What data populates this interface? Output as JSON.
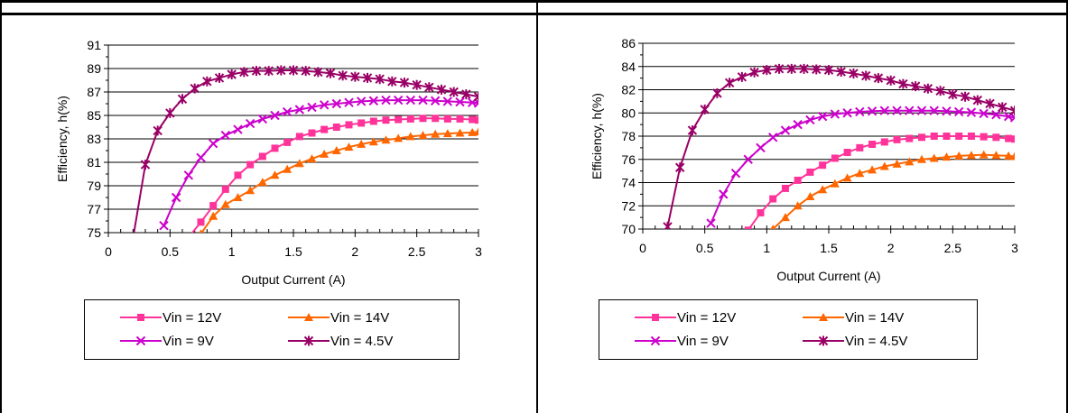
{
  "chart_data": [
    {
      "type": "line",
      "title": "",
      "xlabel": "Output Current (A)",
      "ylabel": "Efficiency, h(%)",
      "xlim": [
        0,
        3
      ],
      "ylim": [
        75,
        91
      ],
      "x_ticks": [
        "0",
        "0.5",
        "1",
        "1.5",
        "2",
        "2.5",
        "3"
      ],
      "y_ticks": [
        "75",
        "77",
        "79",
        "81",
        "83",
        "85",
        "87",
        "89",
        "91"
      ],
      "grid": true,
      "legend_position": "bottom",
      "series": [
        {
          "name": "Vin = 12V",
          "color": "#ff3399",
          "marker": "square",
          "x": [
            0.65,
            0.75,
            0.85,
            0.95,
            1.05,
            1.15,
            1.25,
            1.35,
            1.45,
            1.55,
            1.65,
            1.75,
            1.85,
            1.95,
            2.05,
            2.15,
            2.25,
            2.35,
            2.45,
            2.55,
            2.65,
            2.75,
            2.85,
            2.95,
            3.0
          ],
          "y": [
            74.6,
            75.9,
            77.3,
            78.7,
            79.9,
            80.8,
            81.5,
            82.2,
            82.7,
            83.2,
            83.5,
            83.8,
            84.0,
            84.2,
            84.35,
            84.5,
            84.6,
            84.65,
            84.7,
            84.75,
            84.75,
            84.7,
            84.7,
            84.65,
            84.6
          ]
        },
        {
          "name": "Vin = 14V",
          "color": "#ff6600",
          "marker": "triangle",
          "x": [
            0.75,
            0.85,
            0.95,
            1.05,
            1.15,
            1.25,
            1.35,
            1.45,
            1.55,
            1.65,
            1.75,
            1.85,
            1.95,
            2.05,
            2.15,
            2.25,
            2.35,
            2.45,
            2.55,
            2.65,
            2.75,
            2.85,
            2.95,
            3.0
          ],
          "y": [
            74.9,
            76.4,
            77.4,
            78.0,
            78.6,
            79.3,
            79.9,
            80.4,
            80.9,
            81.3,
            81.7,
            82.0,
            82.3,
            82.55,
            82.75,
            82.9,
            83.05,
            83.2,
            83.3,
            83.4,
            83.45,
            83.5,
            83.55,
            83.6
          ]
        },
        {
          "name": "Vin = 9V",
          "color": "#cc00cc",
          "marker": "x",
          "x": [
            0.45,
            0.55,
            0.65,
            0.75,
            0.85,
            0.95,
            1.05,
            1.15,
            1.25,
            1.35,
            1.45,
            1.55,
            1.65,
            1.75,
            1.85,
            1.95,
            2.05,
            2.15,
            2.25,
            2.35,
            2.45,
            2.55,
            2.65,
            2.75,
            2.85,
            2.95,
            3.0
          ],
          "y": [
            75.6,
            78.0,
            79.9,
            81.4,
            82.6,
            83.3,
            83.8,
            84.3,
            84.7,
            85.0,
            85.3,
            85.5,
            85.7,
            85.9,
            86.0,
            86.1,
            86.2,
            86.25,
            86.3,
            86.3,
            86.3,
            86.3,
            86.25,
            86.2,
            86.15,
            86.1,
            86.05
          ]
        },
        {
          "name": "Vin = 4.5V",
          "color": "#990066",
          "marker": "star",
          "x": [
            0.2,
            0.3,
            0.4,
            0.5,
            0.6,
            0.7,
            0.8,
            0.9,
            1.0,
            1.1,
            1.2,
            1.3,
            1.4,
            1.5,
            1.6,
            1.7,
            1.8,
            1.9,
            2.0,
            2.1,
            2.2,
            2.3,
            2.4,
            2.5,
            2.6,
            2.7,
            2.8,
            2.9,
            3.0
          ],
          "y": [
            74.5,
            80.8,
            83.7,
            85.2,
            86.4,
            87.3,
            87.9,
            88.2,
            88.5,
            88.7,
            88.8,
            88.8,
            88.85,
            88.85,
            88.8,
            88.7,
            88.6,
            88.4,
            88.3,
            88.2,
            88.1,
            87.9,
            87.8,
            87.6,
            87.4,
            87.2,
            87.0,
            86.8,
            86.6
          ]
        }
      ]
    },
    {
      "type": "line",
      "title": "",
      "xlabel": "Output Current (A)",
      "ylabel": "Efficiency, h(%)",
      "xlim": [
        0,
        3
      ],
      "ylim": [
        70,
        86
      ],
      "x_ticks": [
        "0",
        "0.5",
        "1",
        "1.5",
        "2",
        "2.5",
        "3"
      ],
      "y_ticks": [
        "70",
        "72",
        "74",
        "76",
        "78",
        "80",
        "82",
        "84",
        "86"
      ],
      "grid": true,
      "legend_position": "bottom",
      "series": [
        {
          "name": "Vin = 12V",
          "color": "#ff3399",
          "marker": "square",
          "x": [
            0.85,
            0.95,
            1.05,
            1.15,
            1.25,
            1.35,
            1.45,
            1.55,
            1.65,
            1.75,
            1.85,
            1.95,
            2.05,
            2.15,
            2.25,
            2.35,
            2.45,
            2.55,
            2.65,
            2.75,
            2.85,
            2.95,
            3.0
          ],
          "y": [
            69.9,
            71.4,
            72.6,
            73.5,
            74.2,
            74.9,
            75.5,
            76.1,
            76.6,
            77.0,
            77.3,
            77.5,
            77.7,
            77.8,
            77.9,
            78.0,
            78.0,
            78.0,
            78.0,
            77.95,
            77.9,
            77.8,
            77.75
          ]
        },
        {
          "name": "Vin = 14V",
          "color": "#ff6600",
          "marker": "triangle",
          "x": [
            1.05,
            1.15,
            1.25,
            1.35,
            1.45,
            1.55,
            1.65,
            1.75,
            1.85,
            1.95,
            2.05,
            2.15,
            2.25,
            2.35,
            2.45,
            2.55,
            2.65,
            2.75,
            2.85,
            2.95,
            3.0
          ],
          "y": [
            70.0,
            71.0,
            72.0,
            72.8,
            73.4,
            73.9,
            74.4,
            74.8,
            75.1,
            75.4,
            75.6,
            75.8,
            76.0,
            76.1,
            76.2,
            76.3,
            76.35,
            76.4,
            76.35,
            76.3,
            76.25
          ]
        },
        {
          "name": "Vin = 9V",
          "color": "#cc00cc",
          "marker": "x",
          "x": [
            0.55,
            0.65,
            0.75,
            0.85,
            0.95,
            1.05,
            1.15,
            1.25,
            1.35,
            1.45,
            1.55,
            1.65,
            1.75,
            1.85,
            1.95,
            2.05,
            2.15,
            2.25,
            2.35,
            2.45,
            2.55,
            2.65,
            2.75,
            2.85,
            2.95,
            3.0
          ],
          "y": [
            70.5,
            73.0,
            74.8,
            76.0,
            77.0,
            77.9,
            78.5,
            79.0,
            79.4,
            79.7,
            79.9,
            80.0,
            80.1,
            80.15,
            80.2,
            80.2,
            80.2,
            80.2,
            80.2,
            80.15,
            80.1,
            80.05,
            79.95,
            79.85,
            79.7,
            79.6
          ]
        },
        {
          "name": "Vin = 4.5V",
          "color": "#990066",
          "marker": "star",
          "x": [
            0.2,
            0.3,
            0.4,
            0.5,
            0.6,
            0.7,
            0.8,
            0.9,
            1.0,
            1.1,
            1.2,
            1.3,
            1.4,
            1.5,
            1.6,
            1.7,
            1.8,
            1.9,
            2.0,
            2.1,
            2.2,
            2.3,
            2.4,
            2.5,
            2.6,
            2.7,
            2.8,
            2.9,
            3.0
          ],
          "y": [
            70.2,
            75.3,
            78.5,
            80.3,
            81.7,
            82.6,
            83.1,
            83.5,
            83.7,
            83.8,
            83.8,
            83.8,
            83.75,
            83.7,
            83.55,
            83.4,
            83.2,
            83.0,
            82.8,
            82.5,
            82.3,
            82.1,
            81.9,
            81.6,
            81.4,
            81.1,
            80.8,
            80.5,
            80.2
          ]
        }
      ]
    }
  ]
}
